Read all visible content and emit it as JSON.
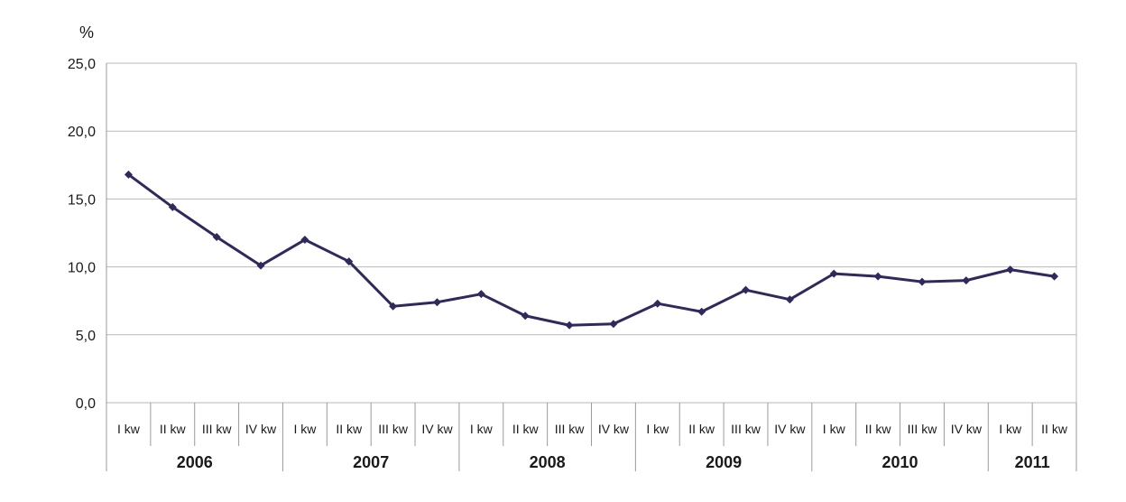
{
  "chart_data": {
    "type": "line",
    "ylabel": "%",
    "ylim": [
      0,
      25
    ],
    "yticks": [
      "0,0",
      "5,0",
      "10,0",
      "15,0",
      "20,0",
      "25,0"
    ],
    "yticks_values": [
      0,
      5,
      10,
      15,
      20,
      25
    ],
    "grid": true,
    "line_color": "#2e2a5e",
    "grid_color": "#b9b9b9",
    "quarter_labels": [
      "I kw",
      "II kw",
      "III kw",
      "IV kw",
      "I kw",
      "II kw",
      "III kw",
      "IV kw",
      "I kw",
      "II kw",
      "III kw",
      "IV kw",
      "I kw",
      "II kw",
      "III kw",
      "IV kw",
      "I kw",
      "II kw",
      "III kw",
      "IV kw",
      "I kw",
      "II kw"
    ],
    "years": [
      {
        "label": "2006",
        "quarters": 4
      },
      {
        "label": "2007",
        "quarters": 4
      },
      {
        "label": "2008",
        "quarters": 4
      },
      {
        "label": "2009",
        "quarters": 4
      },
      {
        "label": "2010",
        "quarters": 4
      },
      {
        "label": "2011",
        "quarters": 2
      }
    ],
    "series": [
      {
        "values": [
          16.8,
          14.4,
          12.2,
          10.1,
          12.0,
          10.4,
          7.1,
          7.4,
          8.0,
          6.4,
          5.7,
          5.8,
          7.3,
          6.7,
          8.3,
          7.6,
          9.5,
          9.3,
          8.9,
          9.0,
          9.8,
          9.3
        ]
      }
    ]
  }
}
